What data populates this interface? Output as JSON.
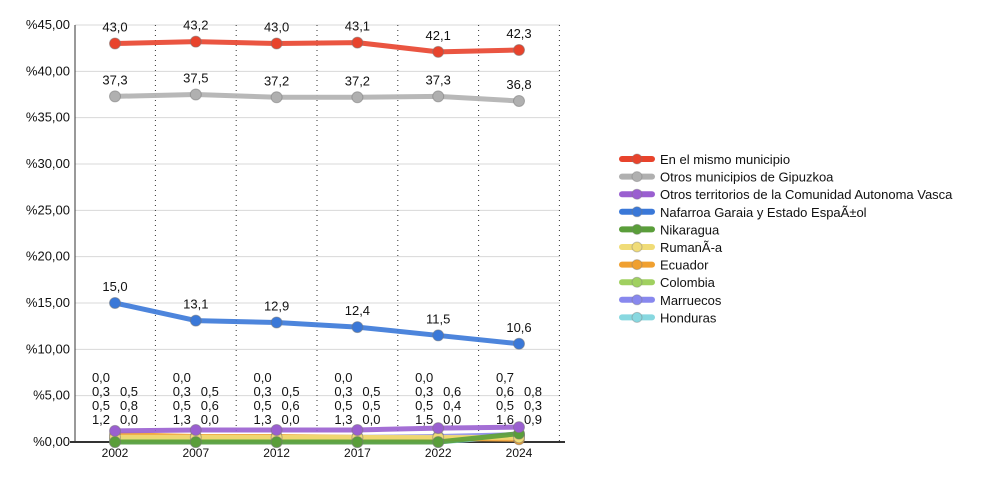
{
  "chart_data": {
    "type": "line",
    "title": "",
    "xlabel": "",
    "ylabel": "",
    "categories": [
      "2002",
      "2007",
      "2012",
      "2017",
      "2022",
      "2024"
    ],
    "ylim": [
      0,
      45
    ],
    "yticks": [
      "%0,00",
      "%5,00",
      "%10,00",
      "%15,00",
      "%20,00",
      "%25,00",
      "%30,00",
      "%35,00",
      "%40,00",
      "%45,00"
    ],
    "legend_position": "right",
    "series": [
      {
        "name": "En el mismo municipio",
        "color": "#e8432c",
        "values": [
          43.0,
          43.2,
          43.0,
          43.1,
          42.1,
          42.3
        ],
        "labels": [
          "43,0",
          "43,2",
          "43,0",
          "43,1",
          "42,1",
          "42,3"
        ]
      },
      {
        "name": "Otros municipios de Gipuzkoa",
        "color": "#b0b0b0",
        "values": [
          37.3,
          37.5,
          37.2,
          37.2,
          37.3,
          36.8
        ],
        "labels": [
          "37,3",
          "37,5",
          "37,2",
          "37,2",
          "37,3",
          "36,8"
        ]
      },
      {
        "name": "Otros territorios de la Comunidad Autonoma Vasca",
        "color": "#9a5fd0",
        "values": [
          1.2,
          1.3,
          1.3,
          1.3,
          1.5,
          1.6
        ],
        "labels": [
          "1,2",
          "1,3",
          "1,3",
          "1,3",
          "1,5",
          "1,6"
        ]
      },
      {
        "name": "Nafarroa Garaia y Estado EspaÃ±ol",
        "color": "#3a78d8",
        "values": [
          15.0,
          13.1,
          12.9,
          12.4,
          11.5,
          10.6
        ],
        "labels": [
          "15,0",
          "13,1",
          "12,9",
          "12,4",
          "11,5",
          "10,6"
        ]
      },
      {
        "name": "Nikaragua",
        "color": "#5a9e3a",
        "values": [
          0.0,
          0.0,
          0.0,
          0.0,
          0.0,
          0.9
        ],
        "labels": [
          "0,0",
          "0,0",
          "0,0",
          "0,0",
          "0,0",
          "0,9"
        ]
      },
      {
        "name": "RumanÃ-a",
        "color": "#f0dc78",
        "values": [
          0.5,
          0.5,
          0.5,
          0.5,
          0.5,
          0.5
        ],
        "labels": [
          "0,5",
          "0,5",
          "0,5",
          "0,5",
          "0,5",
          "0,5"
        ]
      },
      {
        "name": "Ecuador",
        "color": "#f0a030",
        "values": [
          0.8,
          0.6,
          0.6,
          0.5,
          0.4,
          0.3
        ],
        "labels": [
          "0,8",
          "0,6",
          "0,6",
          "0,5",
          "0,4",
          "0,3"
        ]
      },
      {
        "name": "Colombia",
        "color": "#a0d060",
        "values": [
          0.3,
          0.3,
          0.3,
          0.3,
          0.3,
          0.6
        ],
        "labels": [
          "0,3",
          "0,3",
          "0,3",
          "0,3",
          "0,3",
          "0,6"
        ]
      },
      {
        "name": "Marruecos",
        "color": "#8888ee",
        "values": [
          0.5,
          0.5,
          0.5,
          0.5,
          0.6,
          0.8
        ],
        "labels": [
          "0,5",
          "0,5",
          "0,5",
          "0,5",
          "0,6",
          "0,8"
        ]
      },
      {
        "name": "Honduras",
        "color": "#88d8e0",
        "values": [
          0.0,
          0.0,
          0.0,
          0.0,
          0.0,
          0.7
        ],
        "labels": [
          "0,0",
          "0,0",
          "0,0",
          "0,0",
          "0,0",
          "0,7"
        ]
      }
    ]
  }
}
